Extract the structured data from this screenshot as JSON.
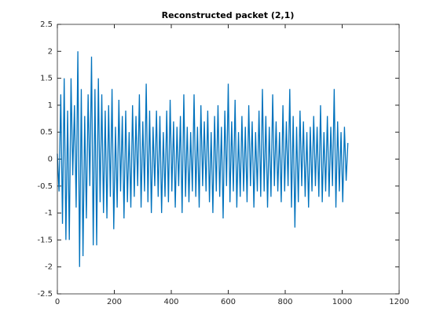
{
  "chart_data": {
    "type": "line",
    "title": "Reconstructed packet (2,1)",
    "x": [
      0,
      6,
      12,
      18,
      24,
      30,
      36,
      42,
      48,
      54,
      60,
      66,
      72,
      78,
      84,
      90,
      96,
      102,
      108,
      114,
      120,
      126,
      132,
      138,
      144,
      150,
      156,
      162,
      168,
      174,
      180,
      186,
      192,
      198,
      204,
      210,
      216,
      222,
      228,
      234,
      240,
      246,
      252,
      258,
      264,
      270,
      276,
      282,
      288,
      294,
      300,
      306,
      312,
      318,
      324,
      330,
      336,
      342,
      348,
      354,
      360,
      366,
      372,
      378,
      384,
      390,
      396,
      402,
      408,
      414,
      420,
      426,
      432,
      438,
      444,
      450,
      456,
      462,
      468,
      474,
      480,
      486,
      492,
      498,
      504,
      510,
      516,
      522,
      528,
      534,
      540,
      546,
      552,
      558,
      564,
      570,
      576,
      582,
      588,
      594,
      600,
      606,
      612,
      618,
      624,
      630,
      636,
      642,
      648,
      654,
      660,
      666,
      672,
      678,
      684,
      690,
      696,
      702,
      708,
      714,
      720,
      726,
      732,
      738,
      744,
      750,
      756,
      762,
      768,
      774,
      780,
      786,
      792,
      798,
      804,
      810,
      816,
      822,
      828,
      834,
      840,
      846,
      852,
      858,
      864,
      870,
      876,
      882,
      888,
      894,
      900,
      906,
      912,
      918,
      924,
      930,
      936,
      942,
      948,
      954,
      960,
      966,
      972,
      978,
      984,
      990,
      996,
      1002,
      1008,
      1014,
      1020
    ],
    "series": [
      {
        "color": "#0072bd",
        "values": [
          0.1,
          -0.6,
          1.2,
          -1.2,
          1.5,
          -1.5,
          0.9,
          -1.5,
          1.5,
          -0.3,
          1.0,
          -0.9,
          2.0,
          -2.0,
          1.3,
          -1.8,
          0.8,
          -1.1,
          1.2,
          -0.5,
          1.9,
          -1.6,
          1.3,
          -1.6,
          1.5,
          -0.8,
          1.2,
          -1.0,
          0.9,
          -1.1,
          1.0,
          -0.7,
          1.3,
          -1.3,
          0.6,
          -0.9,
          1.1,
          -0.6,
          0.8,
          -1.1,
          0.9,
          -0.8,
          0.5,
          -0.9,
          1.0,
          -0.7,
          0.8,
          -0.5,
          1.2,
          -0.9,
          0.7,
          -0.6,
          1.4,
          -0.8,
          0.9,
          -1.0,
          0.6,
          -0.5,
          0.9,
          -0.7,
          0.8,
          -1.0,
          0.5,
          -0.7,
          0.9,
          -0.8,
          1.1,
          -0.6,
          0.7,
          -0.9,
          0.6,
          -0.5,
          0.8,
          -1.0,
          1.2,
          -0.7,
          0.6,
          -0.8,
          0.5,
          -0.6,
          1.2,
          -0.7,
          0.6,
          -0.9,
          1.0,
          -0.5,
          0.7,
          -0.6,
          0.9,
          -0.8,
          0.5,
          -1.0,
          0.8,
          -0.6,
          1.0,
          -0.7,
          0.6,
          -1.1,
          0.9,
          -0.5,
          1.4,
          -0.8,
          0.7,
          -0.6,
          1.1,
          -0.9,
          0.5,
          -0.7,
          0.8,
          -0.6,
          0.6,
          -0.8,
          1.0,
          -0.5,
          0.7,
          -0.9,
          0.5,
          -0.6,
          0.9,
          -0.7,
          1.3,
          -0.6,
          0.8,
          -0.9,
          0.6,
          -0.7,
          1.2,
          -0.5,
          0.7,
          -0.6,
          0.5,
          -0.8,
          1.0,
          -0.6,
          0.7,
          -0.5,
          1.3,
          -0.9,
          0.8,
          -1.27,
          0.6,
          -0.8,
          0.9,
          -0.5,
          0.7,
          -0.7,
          0.5,
          -0.9,
          0.6,
          -0.6,
          0.8,
          -0.5,
          0.6,
          -0.7,
          1.0,
          -0.8,
          0.5,
          -0.6,
          0.8,
          -0.7,
          0.6,
          -0.5,
          1.3,
          -0.9,
          0.7,
          -0.6,
          0.5,
          -0.8,
          0.6,
          -0.4,
          0.3
        ]
      }
    ],
    "xlim": [
      0,
      1200
    ],
    "xticks": [
      0,
      200,
      400,
      600,
      800,
      1000,
      1200
    ],
    "ylim": [
      -2.5,
      2.5
    ],
    "yticks": [
      -2.5,
      -2,
      -1.5,
      -1,
      -0.5,
      0,
      0.5,
      1,
      1.5,
      2,
      2.5
    ],
    "grid": false
  }
}
